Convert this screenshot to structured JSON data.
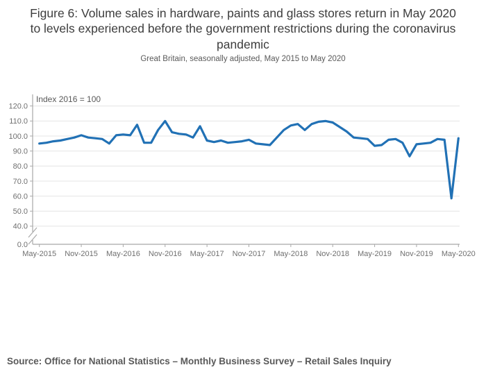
{
  "header": {
    "title": "Figure 6: Volume sales in hardware, paints and glass stores return in May 2020 to levels experienced before the government restrictions during the coronavirus pandemic",
    "subtitle": "Great Britain, seasonally adjusted, May 2015 to May 2020"
  },
  "chart_data": {
    "type": "line",
    "title": "Figure 6: Volume sales in hardware, paints and glass stores return in May 2020 to levels experienced before the government restrictions during the coronavirus pandemic",
    "subtitle": "Great Britain, seasonally adjusted, May 2015 to May 2020",
    "index_label": "Index 2016 = 100",
    "categories": [
      "May-2015",
      "Jun-2015",
      "Jul-2015",
      "Aug-2015",
      "Sep-2015",
      "Oct-2015",
      "Nov-2015",
      "Dec-2015",
      "Jan-2016",
      "Feb-2016",
      "Mar-2016",
      "Apr-2016",
      "May-2016",
      "Jun-2016",
      "Jul-2016",
      "Aug-2016",
      "Sep-2016",
      "Oct-2016",
      "Nov-2016",
      "Dec-2016",
      "Jan-2017",
      "Feb-2017",
      "Mar-2017",
      "Apr-2017",
      "May-2017",
      "Jun-2017",
      "Jul-2017",
      "Aug-2017",
      "Sep-2017",
      "Oct-2017",
      "Nov-2017",
      "Dec-2017",
      "Jan-2018",
      "Feb-2018",
      "Mar-2018",
      "Apr-2018",
      "May-2018",
      "Jun-2018",
      "Jul-2018",
      "Aug-2018",
      "Sep-2018",
      "Oct-2018",
      "Nov-2018",
      "Dec-2018",
      "Jan-2019",
      "Feb-2019",
      "Mar-2019",
      "Apr-2019",
      "May-2019",
      "Jun-2019",
      "Jul-2019",
      "Aug-2019",
      "Sep-2019",
      "Oct-2019",
      "Nov-2019",
      "Dec-2019",
      "Jan-2020",
      "Feb-2020",
      "Mar-2020",
      "Apr-2020",
      "May-2020"
    ],
    "series": [
      {
        "name": "Volume sales, hardware, paints and glass stores (Index 2016 = 100)",
        "values": [
          95,
          95.5,
          96.5,
          97,
          98,
          99,
          100.5,
          99,
          98.5,
          98,
          95,
          100.5,
          101,
          100.5,
          107.5,
          95.5,
          95.5,
          104,
          110,
          102.5,
          101.5,
          101,
          99,
          106.5,
          97,
          96,
          97,
          95.5,
          96,
          96.5,
          97.5,
          95,
          94.5,
          94,
          99,
          104,
          107,
          108,
          104,
          108,
          109.5,
          110,
          109,
          106,
          103,
          99,
          98.5,
          98,
          93.5,
          94,
          97.5,
          98,
          95.5,
          86.5,
          94.5,
          95,
          95.5,
          98,
          97.5,
          58.5,
          98.5
        ]
      }
    ],
    "x_tick_labels": [
      "May-2015",
      "Nov-2015",
      "May-2016",
      "Nov-2016",
      "May-2017",
      "Nov-2017",
      "May-2018",
      "Nov-2018",
      "May-2019",
      "Nov-2019",
      "May-2020"
    ],
    "x_tick_every": 6,
    "y_ticks": [
      0,
      40,
      50,
      60,
      70,
      80,
      90,
      100,
      110,
      120
    ],
    "y_tick_format_decimals": 1,
    "ylim_display": [
      0,
      120
    ],
    "y_axis_break": {
      "between": [
        0,
        40
      ]
    },
    "grid": true,
    "legend": "none",
    "xlabel": "",
    "ylabel": ""
  },
  "footer": {
    "source": "Source: Office for National Statistics – Monthly Business Survey – Retail Sales Inquiry"
  },
  "colors": {
    "line": "#2171b5",
    "grid": "#e4e4e4",
    "axis": "#a8a8a8",
    "tick_label": "#6f6f6f",
    "index_label": "#595959",
    "title": "#3d3d3d",
    "subtitle": "#595959",
    "source": "#595959"
  }
}
